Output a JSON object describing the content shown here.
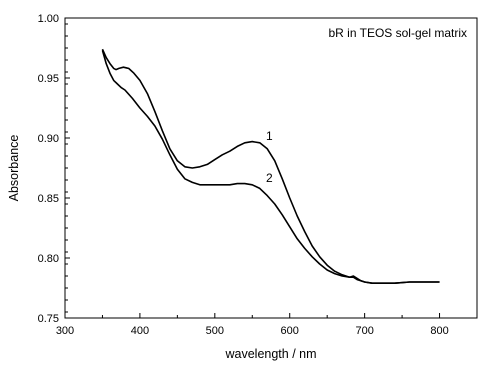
{
  "chart_data": {
    "type": "line",
    "title": "",
    "annotation": "bR in TEOS sol-gel matrix",
    "xlabel": "wavelength / nm",
    "ylabel": "Absorbance",
    "xlim": [
      300,
      850
    ],
    "ylim": [
      0.75,
      1.0
    ],
    "x_ticks": [
      300,
      400,
      500,
      600,
      700,
      800
    ],
    "y_ticks": [
      0.75,
      0.8,
      0.85,
      0.9,
      0.95,
      1.0
    ],
    "x_tick_labels": [
      "300",
      "400",
      "500",
      "600",
      "700",
      "800"
    ],
    "y_tick_labels": [
      "0.75",
      "0.80",
      "0.85",
      "0.90",
      "0.95",
      "1.00"
    ],
    "grid": false,
    "series": [
      {
        "name": "1",
        "label_at": [
          555,
          0.899
        ],
        "x": [
          350,
          355,
          360,
          365,
          368,
          372,
          378,
          385,
          392,
          400,
          410,
          420,
          430,
          440,
          450,
          460,
          470,
          480,
          490,
          500,
          510,
          520,
          530,
          540,
          550,
          560,
          570,
          580,
          590,
          600,
          610,
          620,
          630,
          640,
          650,
          660,
          670,
          680,
          685,
          690,
          695,
          700,
          710,
          720,
          740,
          760,
          780,
          800
        ],
        "y": [
          0.974,
          0.967,
          0.962,
          0.958,
          0.957,
          0.958,
          0.959,
          0.958,
          0.954,
          0.948,
          0.937,
          0.922,
          0.906,
          0.891,
          0.881,
          0.876,
          0.875,
          0.876,
          0.878,
          0.882,
          0.886,
          0.889,
          0.893,
          0.896,
          0.897,
          0.896,
          0.891,
          0.881,
          0.866,
          0.85,
          0.835,
          0.822,
          0.81,
          0.801,
          0.794,
          0.789,
          0.786,
          0.784,
          0.785,
          0.783,
          0.781,
          0.78,
          0.779,
          0.779,
          0.779,
          0.78,
          0.78,
          0.78
        ]
      },
      {
        "name": "2",
        "label_at": [
          555,
          0.864
        ],
        "x": [
          350,
          355,
          360,
          365,
          370,
          375,
          380,
          390,
          400,
          410,
          420,
          430,
          440,
          450,
          460,
          470,
          480,
          490,
          500,
          510,
          520,
          530,
          540,
          550,
          560,
          570,
          580,
          590,
          600,
          610,
          620,
          630,
          640,
          650,
          660,
          670,
          680,
          685,
          690,
          695,
          700,
          710,
          720,
          740,
          760,
          780,
          800
        ],
        "y": [
          0.973,
          0.962,
          0.954,
          0.948,
          0.945,
          0.942,
          0.94,
          0.933,
          0.925,
          0.918,
          0.91,
          0.899,
          0.886,
          0.874,
          0.866,
          0.863,
          0.861,
          0.861,
          0.861,
          0.861,
          0.861,
          0.862,
          0.862,
          0.861,
          0.858,
          0.852,
          0.845,
          0.836,
          0.826,
          0.816,
          0.808,
          0.801,
          0.795,
          0.79,
          0.787,
          0.785,
          0.784,
          0.784,
          0.782,
          0.781,
          0.78,
          0.779,
          0.779,
          0.779,
          0.78,
          0.78,
          0.78
        ]
      }
    ]
  }
}
